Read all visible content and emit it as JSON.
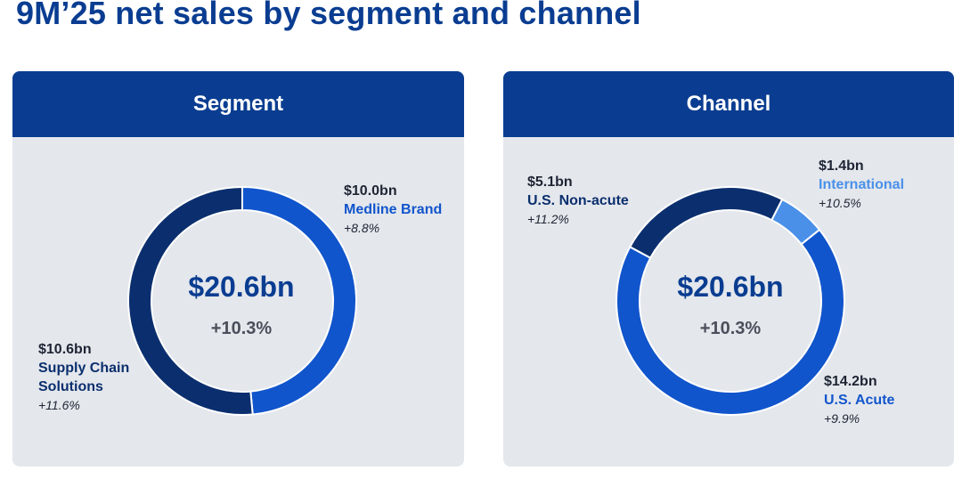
{
  "title": "9M’25 net sales by segment and channel",
  "colors": {
    "navy": "#0a3d91",
    "dark_ring": "#0b2f6e",
    "brand_blue": "#1155cc",
    "light_blue": "#4a90e8",
    "panel_bg": "#e4e7ec"
  },
  "chart_data": [
    {
      "type": "pie",
      "title": "Segment",
      "total": "$20.6bn",
      "total_growth": "+10.3%",
      "slices": [
        {
          "name": "Medline Brand",
          "value": 10.0,
          "amount": "$10.0bn",
          "growth": "+8.8%",
          "color": "#1155cc"
        },
        {
          "name": "Supply Chain Solutions",
          "name_lines": [
            "Supply Chain",
            "Solutions"
          ],
          "value": 10.6,
          "amount": "$10.6bn",
          "growth": "+11.6%",
          "color": "#0b2f6e"
        }
      ]
    },
    {
      "type": "pie",
      "title": "Channel",
      "total": "$20.6bn",
      "total_growth": "+10.3%",
      "slices": [
        {
          "name": "International",
          "value": 1.4,
          "amount": "$1.4bn",
          "growth": "+10.5%",
          "color": "#4a90e8"
        },
        {
          "name": "U.S. Acute",
          "value": 14.2,
          "amount": "$14.2bn",
          "growth": "+9.9%",
          "color": "#1155cc"
        },
        {
          "name": "U.S. Non-acute",
          "value": 5.1,
          "amount": "$5.1bn",
          "growth": "+11.2%",
          "color": "#0b2f6e"
        }
      ]
    }
  ]
}
